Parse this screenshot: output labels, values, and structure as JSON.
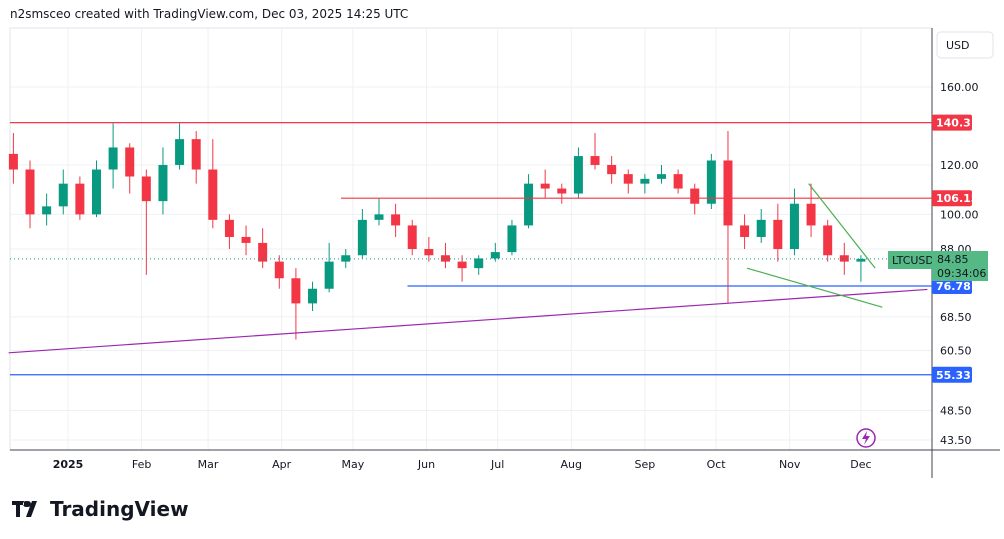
{
  "header": {
    "title": "n2smsceo created with TradingView.com, Dec 03, 2025 14:25 UTC"
  },
  "branding": {
    "logo_text": "TradingView"
  },
  "chart_data": {
    "type": "candlestick",
    "symbol": "LTCUSD",
    "currency": "USD",
    "scale": "log",
    "last_price": "84.85",
    "countdown": "09:34:06",
    "ylim": [
      41.5,
      185
    ],
    "y_ticks": [
      "160.00",
      "120.00",
      "100.00",
      "88.00",
      "68.50",
      "60.50",
      "48.50",
      "43.50"
    ],
    "x_ticks": [
      {
        "label": "2025",
        "day": 0
      },
      {
        "label": "Feb",
        "day": 31
      },
      {
        "label": "Mar",
        "day": 59
      },
      {
        "label": "Apr",
        "day": 90
      },
      {
        "label": "May",
        "day": 120
      },
      {
        "label": "Jun",
        "day": 151
      },
      {
        "label": "Jul",
        "day": 181
      },
      {
        "label": "Aug",
        "day": 212
      },
      {
        "label": "Sep",
        "day": 243
      },
      {
        "label": "Oct",
        "day": 273
      },
      {
        "label": "Nov",
        "day": 304
      },
      {
        "label": "Dec",
        "day": 334
      }
    ],
    "candle_start_day": -23,
    "candle_interval_days": 7,
    "candles": [
      [
        125,
        135,
        112,
        118
      ],
      [
        118,
        122,
        95,
        100
      ],
      [
        100,
        108,
        96,
        103
      ],
      [
        103,
        118,
        100,
        112
      ],
      [
        112,
        115,
        98,
        100
      ],
      [
        100,
        122,
        99,
        118
      ],
      [
        118,
        140,
        110,
        128
      ],
      [
        128,
        130,
        108,
        115
      ],
      [
        115,
        118,
        80,
        105
      ],
      [
        105,
        128,
        100,
        120
      ],
      [
        120,
        140,
        118,
        132
      ],
      [
        132,
        136,
        112,
        118
      ],
      [
        118,
        132,
        95,
        98
      ],
      [
        98,
        100,
        88,
        92
      ],
      [
        92,
        96,
        86,
        90
      ],
      [
        90,
        95,
        82,
        84
      ],
      [
        84,
        86,
        76,
        79
      ],
      [
        79,
        82,
        63,
        72
      ],
      [
        72,
        78,
        70,
        76
      ],
      [
        76,
        90,
        75,
        84
      ],
      [
        84,
        88,
        82,
        86
      ],
      [
        86,
        102,
        85,
        98
      ],
      [
        98,
        106,
        96,
        100
      ],
      [
        100,
        104,
        92,
        96
      ],
      [
        96,
        98,
        86,
        88
      ],
      [
        88,
        92,
        84,
        86
      ],
      [
        86,
        90,
        82,
        84
      ],
      [
        84,
        86,
        78,
        82
      ],
      [
        82,
        86,
        80,
        85
      ],
      [
        85,
        90,
        84,
        87
      ],
      [
        87,
        98,
        86,
        96
      ],
      [
        96,
        116,
        95,
        112
      ],
      [
        112,
        118,
        106,
        110
      ],
      [
        110,
        112,
        104,
        108
      ],
      [
        108,
        128,
        106,
        124
      ],
      [
        124,
        135,
        118,
        120
      ],
      [
        120,
        124,
        112,
        116
      ],
      [
        116,
        118,
        108,
        112
      ],
      [
        112,
        116,
        108,
        114
      ],
      [
        114,
        120,
        112,
        116
      ],
      [
        116,
        118,
        108,
        110
      ],
      [
        110,
        112,
        100,
        104
      ],
      [
        104,
        125,
        102,
        122
      ],
      [
        122,
        136,
        72,
        96
      ],
      [
        96,
        100,
        88,
        92
      ],
      [
        92,
        102,
        90,
        98
      ],
      [
        98,
        104,
        84,
        88
      ],
      [
        88,
        110,
        86,
        104
      ],
      [
        104,
        112,
        92,
        96
      ],
      [
        96,
        98,
        84,
        86
      ],
      [
        86,
        90,
        80,
        84
      ],
      [
        84,
        86,
        78,
        84.85
      ]
    ],
    "levels": [
      {
        "value": 140.31,
        "label": "140.31",
        "color": "#f23645",
        "from_day": -30
      },
      {
        "value": 106.15,
        "label": "106.15",
        "color": "#f23645",
        "from_day": 115
      },
      {
        "value": 76.78,
        "label": "76.78",
        "color": "#2962ff",
        "from_day": 143
      },
      {
        "value": 55.33,
        "label": "55.33",
        "color": "#2962ff",
        "from_day": -30
      }
    ],
    "trendlines": [
      {
        "color": "#9c27b0",
        "p1": [
          -25,
          60
        ],
        "p2": [
          362,
          75.8
        ]
      },
      {
        "color": "#4caf50",
        "p1": [
          312,
          112
        ],
        "p2": [
          340,
          82
        ]
      },
      {
        "color": "#4caf50",
        "p1": [
          286,
          82
        ],
        "p2": [
          343,
          71
        ]
      }
    ],
    "colors": {
      "up": "#089981",
      "down": "#f23645",
      "last": "#4caf50"
    }
  }
}
